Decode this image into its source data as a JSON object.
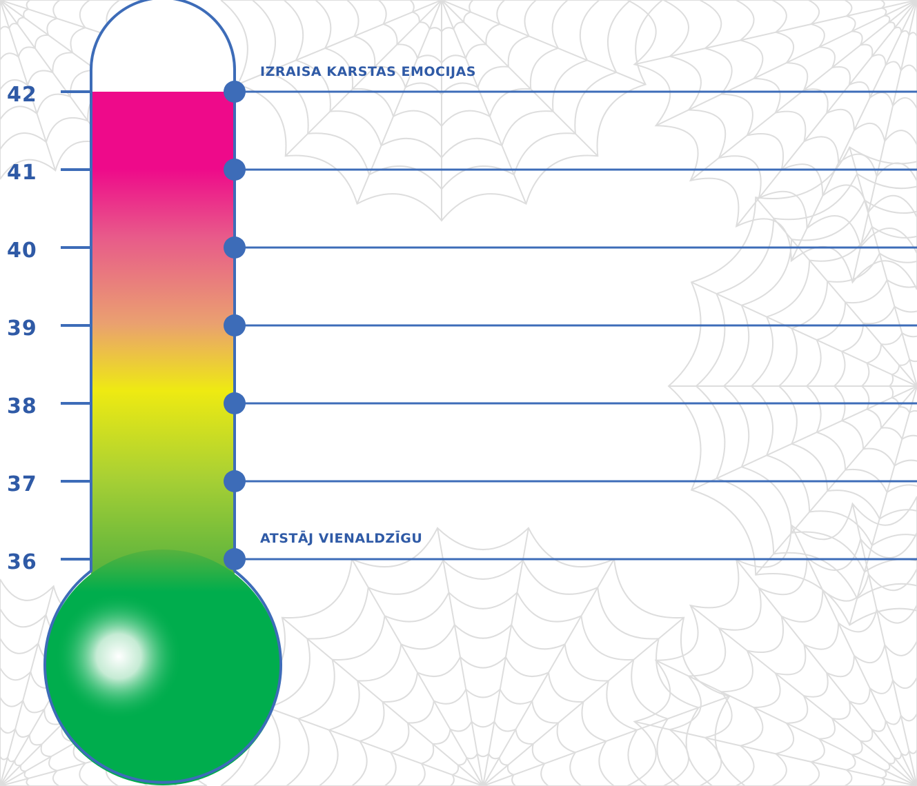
{
  "thermometer": {
    "scale": [
      "42",
      "41",
      "40",
      "39",
      "38",
      "37",
      "36"
    ],
    "top_label": "IZRAISA KARSTAS EMOCIJAS",
    "bottom_label": "ATSTĀJ VIENALDZĪGU"
  },
  "colors": {
    "outline": "#3d6cb8",
    "text": "#2f5aa6",
    "magenta": "#ee0a8a",
    "yellow": "#eeea12",
    "green": "#00ad4d",
    "web": "#d8d8d8"
  },
  "icons": [
    "spider-web-icon"
  ]
}
